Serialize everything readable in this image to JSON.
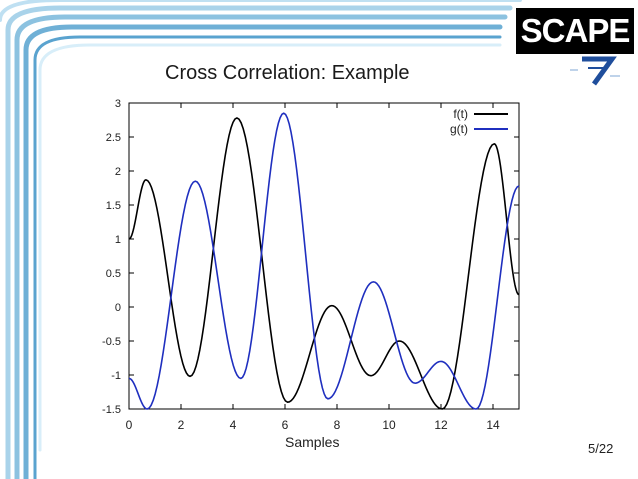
{
  "slide": {
    "brand": "SCAPE",
    "title": "Cross Correlation: Example",
    "page_number": "5/22"
  },
  "chart_data": {
    "type": "line",
    "title": "",
    "xlabel": "Samples",
    "ylabel": "",
    "xlim": [
      0,
      15
    ],
    "ylim": [
      -1.5,
      3
    ],
    "xticks": [
      0,
      2,
      4,
      6,
      8,
      10,
      12,
      14
    ],
    "yticks": [
      -1.5,
      -1,
      -0.5,
      0,
      0.5,
      1,
      1.5,
      2,
      2.5,
      3
    ],
    "grid": false,
    "legend_position": "top-right",
    "series": [
      {
        "name": "f(t)",
        "color": "#000000",
        "points": [
          [
            0,
            1.0
          ],
          [
            0.65,
            1.87
          ],
          [
            2.35,
            -1.02
          ],
          [
            4.15,
            2.78
          ],
          [
            6.1,
            -1.4
          ],
          [
            7.8,
            0.02
          ],
          [
            9.3,
            -1.01
          ],
          [
            10.4,
            -0.5
          ],
          [
            12.05,
            -1.5
          ],
          [
            14.05,
            2.4
          ],
          [
            15,
            0.18
          ]
        ]
      },
      {
        "name": "g(t)",
        "color": "#1f2fbf",
        "points": [
          [
            0,
            -1.05
          ],
          [
            0.7,
            -1.5
          ],
          [
            2.55,
            1.85
          ],
          [
            4.3,
            -1.05
          ],
          [
            5.95,
            2.85
          ],
          [
            7.65,
            -1.35
          ],
          [
            9.4,
            0.37
          ],
          [
            11.0,
            -1.12
          ],
          [
            12.0,
            -0.8
          ],
          [
            13.35,
            -1.5
          ],
          [
            15,
            1.78
          ]
        ]
      }
    ]
  }
}
